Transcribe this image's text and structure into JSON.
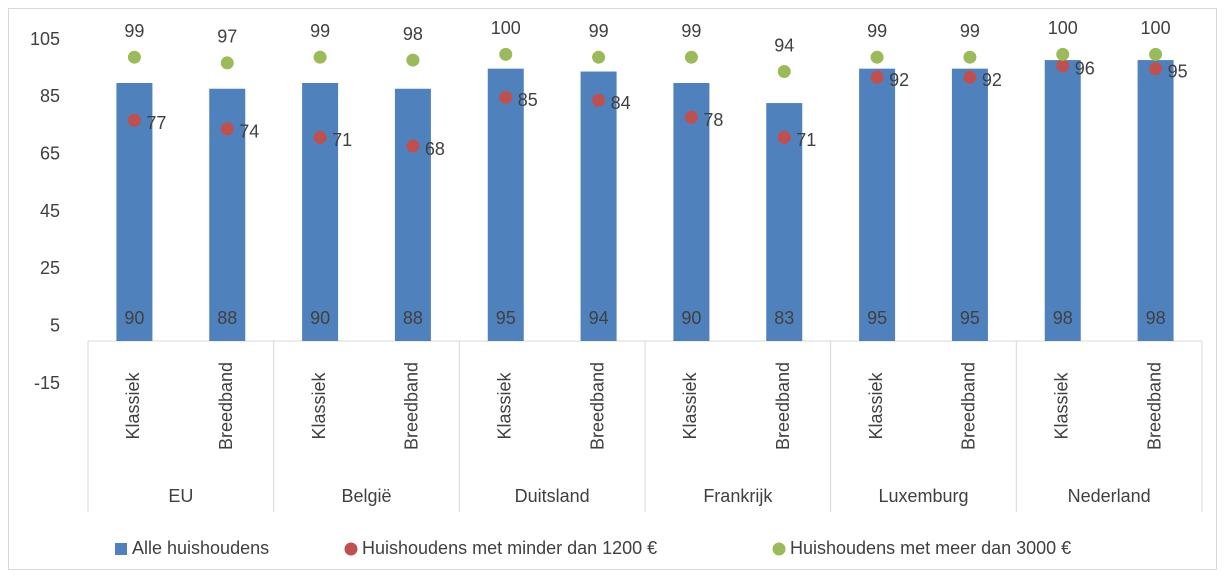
{
  "chart_data": {
    "type": "bar",
    "categories": [
      "Klassiek",
      "Breedband",
      "Klassiek",
      "Breedband",
      "Klassiek",
      "Breedband",
      "Klassiek",
      "Breedband",
      "Klassiek",
      "Breedband",
      "Klassiek",
      "Breedband"
    ],
    "groups": [
      "EU",
      "België",
      "Duitsland",
      "Frankrijk",
      "Luxemburg",
      "Nederland"
    ],
    "series": [
      {
        "name": "Alle huishoudens",
        "color": "#4f81bd",
        "kind": "bar",
        "values": [
          90,
          88,
          90,
          88,
          95,
          94,
          90,
          83,
          95,
          95,
          98,
          98
        ]
      },
      {
        "name": "Huishoudens met minder dan 1200 €",
        "color": "#c0504d",
        "kind": "dot",
        "values": [
          77,
          74,
          71,
          68,
          85,
          84,
          78,
          71,
          92,
          92,
          96,
          95
        ]
      },
      {
        "name": "Huishoudens met meer dan 3000 €",
        "color": "#9bbb59",
        "kind": "dot",
        "values": [
          99,
          97,
          99,
          98,
          100,
          99,
          99,
          94,
          99,
          99,
          100,
          100
        ]
      }
    ],
    "ylim": [
      -15,
      105
    ],
    "yticks": [
      -15,
      5,
      25,
      45,
      65,
      85,
      105
    ],
    "legend": "bottom"
  }
}
